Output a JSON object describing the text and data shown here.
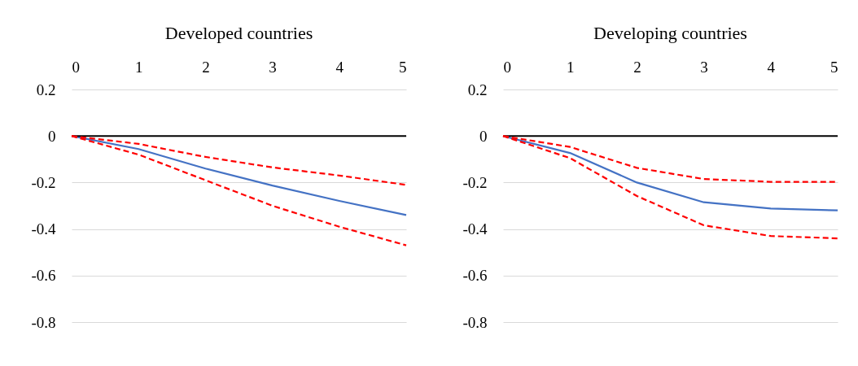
{
  "chart_data": [
    {
      "type": "line",
      "title": "Developed countries",
      "x": [
        0,
        1,
        2,
        3,
        4,
        5
      ],
      "xlim": [
        0,
        5
      ],
      "xticks": [
        0,
        1,
        2,
        3,
        4,
        5
      ],
      "ylim": [
        -0.8,
        0.2
      ],
      "yticks": [
        -0.8,
        -0.6,
        -0.4,
        -0.2,
        0,
        0.2
      ],
      "grid": "y",
      "marker": "none",
      "series": [
        {
          "color": "#4472c4",
          "line_style": "solid",
          "values": [
            0,
            -0.056,
            -0.14,
            -0.213,
            -0.279,
            -0.34
          ]
        },
        {
          "color": "#ff0000",
          "line_style": "dashed",
          "values": [
            0,
            -0.034,
            -0.09,
            -0.135,
            -0.17,
            -0.21
          ]
        },
        {
          "color": "#ff0000",
          "line_style": "dashed",
          "values": [
            0,
            -0.08,
            -0.19,
            -0.3,
            -0.39,
            -0.47
          ]
        }
      ],
      "ref_lines": [
        {
          "axis": "y",
          "value": 0,
          "color": "#000000"
        }
      ]
    },
    {
      "type": "line",
      "title": "Developing countries",
      "x": [
        0,
        1,
        2,
        3,
        4,
        5
      ],
      "xlim": [
        0,
        5
      ],
      "xticks": [
        0,
        1,
        2,
        3,
        4,
        5
      ],
      "ylim": [
        -0.8,
        0.2
      ],
      "yticks": [
        -0.8,
        -0.6,
        -0.4,
        -0.2,
        0,
        0.2
      ],
      "grid": "y",
      "marker": "none",
      "series": [
        {
          "color": "#4472c4",
          "line_style": "solid",
          "values": [
            0,
            -0.073,
            -0.2,
            -0.285,
            -0.312,
            -0.32
          ]
        },
        {
          "color": "#ff0000",
          "line_style": "dashed",
          "values": [
            0,
            -0.047,
            -0.137,
            -0.185,
            -0.197,
            -0.197
          ]
        },
        {
          "color": "#ff0000",
          "line_style": "dashed",
          "values": [
            0,
            -0.095,
            -0.258,
            -0.384,
            -0.43,
            -0.44
          ]
        }
      ],
      "ref_lines": [
        {
          "axis": "y",
          "value": 0,
          "color": "#000000"
        }
      ]
    }
  ]
}
